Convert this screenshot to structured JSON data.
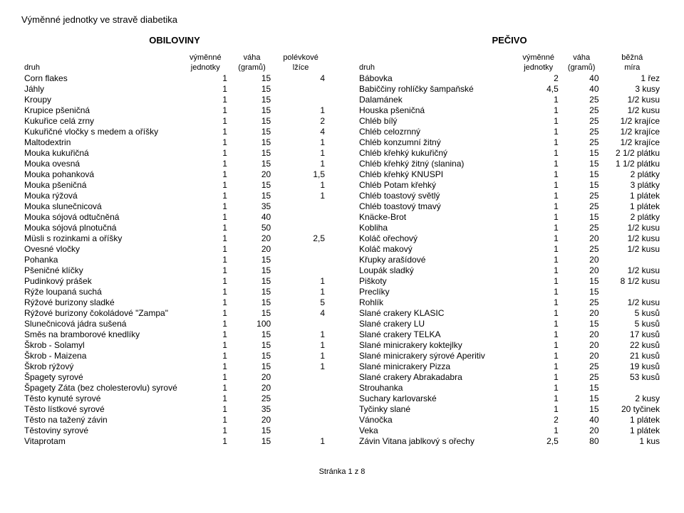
{
  "pageTitle": "Výměnné jednotky ve stravě diabetika",
  "footer": "Stránka 1 z 8",
  "left": {
    "sectionTitle": "OBILOVINY",
    "headers": {
      "druh": "druh",
      "h1a": "výměnné",
      "h1b": "jednotky",
      "h2a": "váha",
      "h2b": "(gramů)",
      "h3a": "polévkové",
      "h3b": "lžíce"
    },
    "rows": [
      {
        "n": "Corn flakes",
        "u": "1",
        "g": "15",
        "m": "4"
      },
      {
        "n": "Jáhly",
        "u": "1",
        "g": "15",
        "m": ""
      },
      {
        "n": "Kroupy",
        "u": "1",
        "g": "15",
        "m": ""
      },
      {
        "n": "Krupice pšeničná",
        "u": "1",
        "g": "15",
        "m": "1"
      },
      {
        "n": "Kukuřice celá zrny",
        "u": "1",
        "g": "15",
        "m": "2"
      },
      {
        "n": "Kukuřičné vločky s medem a oříšky",
        "u": "1",
        "g": "15",
        "m": "4"
      },
      {
        "n": "Maltodextrin",
        "u": "1",
        "g": "15",
        "m": "1"
      },
      {
        "n": "Mouka kukuřičná",
        "u": "1",
        "g": "15",
        "m": "1"
      },
      {
        "n": "Mouka ovesná",
        "u": "1",
        "g": "15",
        "m": "1"
      },
      {
        "n": "Mouka pohanková",
        "u": "1",
        "g": "20",
        "m": "1,5"
      },
      {
        "n": "Mouka pšeničná",
        "u": "1",
        "g": "15",
        "m": "1"
      },
      {
        "n": "Mouka rýžová",
        "u": "1",
        "g": "15",
        "m": "1"
      },
      {
        "n": "Mouka slunečnicová",
        "u": "1",
        "g": "35",
        "m": ""
      },
      {
        "n": "Mouka sójová odtučněná",
        "u": "1",
        "g": "40",
        "m": ""
      },
      {
        "n": "Mouka sójová plnotučná",
        "u": "1",
        "g": "50",
        "m": ""
      },
      {
        "n": "Müsli s rozinkami a oříšky",
        "u": "1",
        "g": "20",
        "m": "2,5"
      },
      {
        "n": "Ovesné vločky",
        "u": "1",
        "g": "20",
        "m": ""
      },
      {
        "n": "Pohanka",
        "u": "1",
        "g": "15",
        "m": ""
      },
      {
        "n": "Pšeničné klíčky",
        "u": "1",
        "g": "15",
        "m": ""
      },
      {
        "n": "Pudinkový prášek",
        "u": "1",
        "g": "15",
        "m": "1"
      },
      {
        "n": "Rýže loupaná suchá",
        "u": "1",
        "g": "15",
        "m": "1"
      },
      {
        "n": "Rýžové burizony sladké",
        "u": "1",
        "g": "15",
        "m": "5"
      },
      {
        "n": "Rýžové burizony čokoládové \"Zampa\"",
        "u": "1",
        "g": "15",
        "m": "4"
      },
      {
        "n": "Slunečnicová jádra sušená",
        "u": "1",
        "g": "100",
        "m": ""
      },
      {
        "n": "Směs na bramborové knedlíky",
        "u": "1",
        "g": "15",
        "m": "1"
      },
      {
        "n": "Škrob - Solamyl",
        "u": "1",
        "g": "15",
        "m": "1"
      },
      {
        "n": "Škrob - Maizena",
        "u": "1",
        "g": "15",
        "m": "1"
      },
      {
        "n": "Škrob rýžový",
        "u": "1",
        "g": "15",
        "m": "1"
      },
      {
        "n": "Špagety syrové",
        "u": "1",
        "g": "20",
        "m": ""
      },
      {
        "n": "Špagety Záta (bez cholesterovlu) syrové",
        "u": "1",
        "g": "20",
        "m": ""
      },
      {
        "n": "Těsto kynuté syrové",
        "u": "1",
        "g": "25",
        "m": ""
      },
      {
        "n": "Těsto lístkové syrové",
        "u": "1",
        "g": "35",
        "m": ""
      },
      {
        "n": "Těsto na tažený závin",
        "u": "1",
        "g": "20",
        "m": ""
      },
      {
        "n": "Těstoviny syrové",
        "u": "1",
        "g": "15",
        "m": ""
      },
      {
        "n": "Vitaprotam",
        "u": "1",
        "g": "15",
        "m": "1"
      }
    ]
  },
  "right": {
    "sectionTitle": "PEČIVO",
    "headers": {
      "druh": "druh",
      "h1a": "výměnné",
      "h1b": "jednotky",
      "h2a": "váha",
      "h2b": "(gramů)",
      "h3a": "běžná",
      "h3b": "míra"
    },
    "rows": [
      {
        "n": "Bábovka",
        "u": "2",
        "g": "40",
        "m": "1 řez"
      },
      {
        "n": "Babiččiny rohlíčky šampaňské",
        "u": "4,5",
        "g": "40",
        "m": "3 kusy"
      },
      {
        "n": "Dalamánek",
        "u": "1",
        "g": "25",
        "m": "1/2 kusu"
      },
      {
        "n": "Houska pšeničná",
        "u": "1",
        "g": "25",
        "m": "1/2 kusu"
      },
      {
        "n": "Chléb bílý",
        "u": "1",
        "g": "25",
        "m": "1/2 krajíce"
      },
      {
        "n": "Chléb celozrnný",
        "u": "1",
        "g": "25",
        "m": "1/2 krajíce"
      },
      {
        "n": "Chléb konzumní žitný",
        "u": "1",
        "g": "25",
        "m": "1/2 krajíce"
      },
      {
        "n": "Chléb křehký kukuřičný",
        "u": "1",
        "g": "15",
        "m": "2 1/2 plátku"
      },
      {
        "n": "Chléb křehký žitný (slanina)",
        "u": "1",
        "g": "15",
        "m": "1 1/2 plátku"
      },
      {
        "n": "Chléb křehký KNUSPI",
        "u": "1",
        "g": "15",
        "m": "2 plátky"
      },
      {
        "n": "Chléb Potam křehký",
        "u": "1",
        "g": "15",
        "m": "3 plátky"
      },
      {
        "n": "Chléb toastový světlý",
        "u": "1",
        "g": "25",
        "m": "1 plátek"
      },
      {
        "n": "Chléb toastový tmavý",
        "u": "1",
        "g": "25",
        "m": "1 plátek"
      },
      {
        "n": "Knäcke-Brot",
        "u": "1",
        "g": "15",
        "m": "2 plátky"
      },
      {
        "n": "Kobliha",
        "u": "1",
        "g": "25",
        "m": "1/2 kusu"
      },
      {
        "n": "Koláč ořechový",
        "u": "1",
        "g": "20",
        "m": "1/2 kusu"
      },
      {
        "n": "Koláč makový",
        "u": "1",
        "g": "25",
        "m": "1/2 kusu"
      },
      {
        "n": "Křupky arašídové",
        "u": "1",
        "g": "20",
        "m": ""
      },
      {
        "n": "Loupák sladký",
        "u": "1",
        "g": "20",
        "m": "1/2 kusu"
      },
      {
        "n": "Piškoty",
        "u": "1",
        "g": "15",
        "m": "8 1/2 kusu"
      },
      {
        "n": "Preclíky",
        "u": "1",
        "g": "15",
        "m": ""
      },
      {
        "n": "Rohlík",
        "u": "1",
        "g": "25",
        "m": "1/2 kusu"
      },
      {
        "n": "Slané crakery KLASIC",
        "u": "1",
        "g": "20",
        "m": "5 kusů"
      },
      {
        "n": "Slané crakery LU",
        "u": "1",
        "g": "15",
        "m": "5 kusů"
      },
      {
        "n": "Slané crakery TELKA",
        "u": "1",
        "g": "20",
        "m": "17 kusů"
      },
      {
        "n": "Slané minicrakery koktejlky",
        "u": "1",
        "g": "20",
        "m": "22 kusů"
      },
      {
        "n": "Slané minicrakery sýrové Aperitiv",
        "u": "1",
        "g": "20",
        "m": "21 kusů"
      },
      {
        "n": "Slané minicrakery Pizza",
        "u": "1",
        "g": "25",
        "m": "19 kusů"
      },
      {
        "n": "Slané crakery Abrakadabra",
        "u": "1",
        "g": "25",
        "m": "53 kusů"
      },
      {
        "n": "Strouhanka",
        "u": "1",
        "g": "15",
        "m": ""
      },
      {
        "n": "Suchary karlovarské",
        "u": "1",
        "g": "15",
        "m": "2 kusy"
      },
      {
        "n": "Tyčinky slané",
        "u": "1",
        "g": "15",
        "m": "20 tyčinek"
      },
      {
        "n": "Vánočka",
        "u": "2",
        "g": "40",
        "m": "1 plátek"
      },
      {
        "n": "Veka",
        "u": "1",
        "g": "20",
        "m": "1 plátek"
      },
      {
        "n": "Závin Vitana jablkový s ořechy",
        "u": "2,5",
        "g": "80",
        "m": "1 kus"
      }
    ]
  }
}
